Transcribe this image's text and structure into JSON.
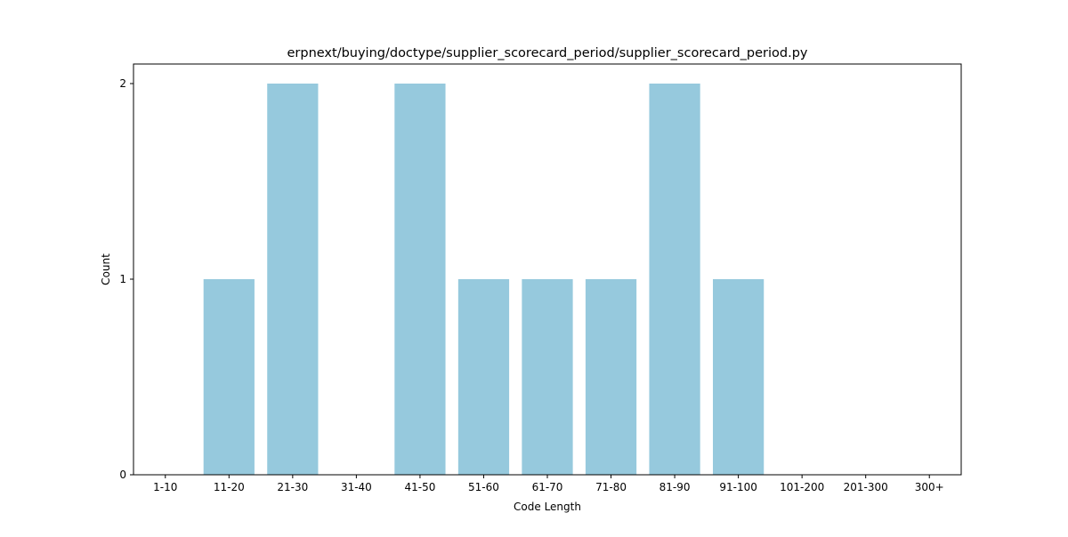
{
  "chart_data": {
    "type": "bar",
    "title": "erpnext/buying/doctype/supplier_scorecard_period/supplier_scorecard_period.py",
    "xlabel": "Code Length",
    "ylabel": "Count",
    "categories": [
      "1-10",
      "11-20",
      "21-30",
      "31-40",
      "41-50",
      "51-60",
      "61-70",
      "71-80",
      "81-90",
      "91-100",
      "101-200",
      "201-300",
      "300+"
    ],
    "values": [
      0,
      1,
      2,
      0,
      2,
      1,
      1,
      1,
      2,
      1,
      0,
      0,
      0
    ],
    "ylim": [
      0,
      2.1
    ],
    "yticks": [
      0,
      1,
      2
    ],
    "bar_color": "#96c9dd",
    "grid": false,
    "legend": "none"
  }
}
